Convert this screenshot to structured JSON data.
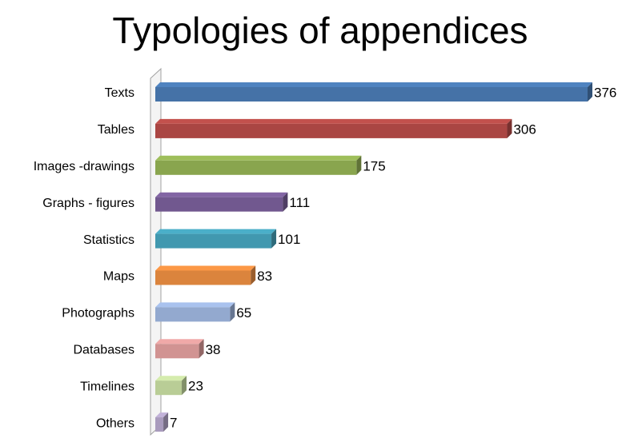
{
  "chart_data": {
    "type": "bar",
    "orientation": "horizontal",
    "title": "Typologies of appendices",
    "categories": [
      "Texts",
      "Tables",
      "Images -drawings",
      "Graphs - figures",
      "Statistics",
      "Maps",
      "Photographs",
      "Databases",
      "Timelines",
      "Others"
    ],
    "values": [
      376,
      306,
      175,
      111,
      101,
      83,
      65,
      38,
      23,
      7
    ],
    "colors": [
      "#4572a7",
      "#aa4643",
      "#89a54e",
      "#71588f",
      "#4198af",
      "#db843d",
      "#93a9cf",
      "#d19392",
      "#b9cd96",
      "#a99bbd"
    ]
  }
}
